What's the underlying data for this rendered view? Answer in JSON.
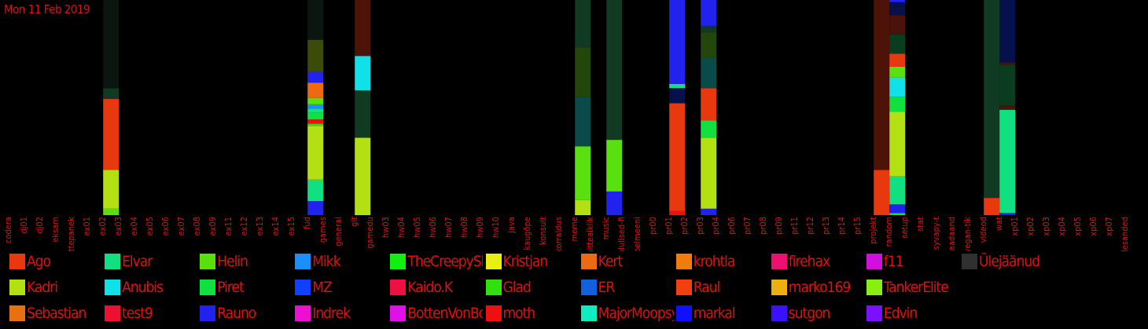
{
  "chart_data": {
    "type": "bar",
    "stacked": true,
    "title": "Mon 11 Feb 2019",
    "categories": [
      "codera",
      "dj01",
      "dj02",
      "eksam",
      "ettepanek",
      "ex01",
      "ex02",
      "ex03",
      "ex04",
      "ex05",
      "ex06",
      "ex07",
      "ex08",
      "ex09",
      "ex11",
      "ex12",
      "ex13",
      "ex14",
      "ex15",
      "fud",
      "games",
      "general",
      "git",
      "gamedu",
      "hw03",
      "hw04",
      "hw05",
      "hw06",
      "hw07",
      "hw08",
      "hw09",
      "hw10",
      "java",
      "kaugõpe",
      "konsult",
      "korraldus",
      "meme",
      "mitteaiklik",
      "music",
      "olulised-fi",
      "pelmeeni",
      "pr00",
      "pr01",
      "pr02",
      "pr03",
      "pr04",
      "pr06",
      "pr07",
      "pr08",
      "pr09",
      "pr11",
      "pr12",
      "pr13",
      "pr14",
      "pr15",
      "projekt",
      "random",
      "setup",
      "stat",
      "syvapy-t",
      "teadaand",
      "vegan-tik",
      "videod",
      "wat",
      "xp01",
      "xp02",
      "xp03",
      "xp04",
      "xp05",
      "xp06",
      "xp07",
      "ülesanded"
    ],
    "ylim": [
      0,
      1
    ],
    "grid": false,
    "legend_position": "bottom",
    "segments": {
      "ex02": [
        [
          "Helin",
          0.03
        ],
        [
          "Kadri",
          0.18
        ],
        [
          "Ago",
          0.33
        ],
        [
          "Ülejäänud",
          0.05
        ],
        [
          "other-dark",
          0.41
        ]
      ],
      "fud": [
        [
          "Rauno",
          0.065
        ],
        [
          "Elvar",
          0.1
        ],
        [
          "Kadri",
          0.25
        ],
        [
          "Glad",
          0.01
        ],
        [
          "moth",
          0.02
        ],
        [
          "Piret",
          0.03
        ],
        [
          "Elvar",
          0.02
        ],
        [
          "Mikk",
          0.02
        ],
        [
          "Helin",
          0.03
        ],
        [
          "Kert",
          0.07
        ],
        [
          "Rauno",
          0.05
        ],
        [
          "Ülejäänud",
          0.15
        ],
        [
          "other-dark",
          0.185
        ]
      ],
      "git": [
        [
          "Kadri",
          0.36
        ],
        [
          "Ülejäänud",
          0.22
        ],
        [
          "Anubis",
          0.16
        ],
        [
          "Ülejäänud",
          0.26
        ]
      ],
      "meme": [
        [
          "Kadri",
          0.07
        ],
        [
          "Helin",
          0.25
        ],
        [
          "Ülejäänud",
          0.23
        ],
        [
          "Ülejäänud",
          0.23
        ],
        [
          "Ülejäänud",
          0.22
        ]
      ],
      "music": [
        [
          "Rauno",
          0.11
        ],
        [
          "Helin",
          0.24
        ],
        [
          "Ülejäänud",
          0.65
        ]
      ],
      "pr01": [
        [
          "moth",
          0.02
        ],
        [
          "Ago",
          0.5
        ],
        [
          "Ülejäänud",
          0.07
        ],
        [
          "Elvar",
          0.02
        ],
        [
          "Rauno",
          0.39
        ]
      ],
      "pr03": [
        [
          "Rauno",
          0.03
        ],
        [
          "Kadri",
          0.33
        ],
        [
          "Piret",
          0.08
        ],
        [
          "Ago",
          0.15
        ],
        [
          "Ülejäänud",
          0.14
        ],
        [
          "Ülejäänud",
          0.12
        ],
        [
          "Ülejäänud",
          0.03
        ],
        [
          "Rauno",
          0.12
        ]
      ],
      "projekt": [
        [
          "Ago",
          0.21
        ],
        [
          "Ülejäänud",
          0.79
        ]
      ],
      "random": [
        [
          "Piret",
          0.01
        ],
        [
          "Rauno",
          0.04
        ],
        [
          "Elvar",
          0.13
        ],
        [
          "Kadri",
          0.3
        ],
        [
          "Piret",
          0.07
        ],
        [
          "Anubis",
          0.09
        ],
        [
          "Helin",
          0.05
        ],
        [
          "Ago",
          0.06
        ],
        [
          "Ülejäänud",
          0.09
        ],
        [
          "Ülejäänud",
          0.09
        ],
        [
          "Ülejäänud",
          0.06
        ],
        [
          "Rauno",
          0.01
        ]
      ],
      "videod": [
        [
          "Ago",
          0.08
        ],
        [
          "Ülejäänud",
          0.92
        ]
      ],
      "wat": [
        [
          "Rauno",
          0.01
        ],
        [
          "Elvar",
          0.48
        ],
        [
          "Ülejäänud",
          0.02
        ],
        [
          "Ülejäänud",
          0.19
        ],
        [
          "Ülejäänud",
          0.01
        ],
        [
          "Ülejäänud",
          0.29
        ]
      ]
    },
    "palette": {
      "Ago": "#e8380e",
      "Elvar": "#10e080",
      "Helin": "#5ae00e",
      "Mikk": "#1a90ff",
      "TheCreepySh": "#12ee12",
      "Kristjan": "#e8f012",
      "Kert": "#ee6a10",
      "krohtla": "#f07c10",
      "firehax": "#ee1070",
      "f11": "#d010e0",
      "Ülejäänud": "#303030",
      "Kadri": "#b2e012",
      "Anubis": "#10e0e8",
      "Piret": "#10e040",
      "MZ": "#1040ff",
      "Kaido.K": "#ee1040",
      "Glad": "#32e010",
      "ER": "#1060e0",
      "Raul": "#f04010",
      "marko169": "#eeb010",
      "TankerElite": "#8aee12",
      "Sebastian": "#e87010",
      "test9": "#ee1030",
      "Rauno": "#2222ee",
      "Indrek": "#ee10d0",
      "BottenVonBot": "#e010e8",
      "moth": "#ee1010",
      "MajorMoopsy": "#10ecc0",
      "markal": "#1010ff",
      "sutgon": "#3c10ff",
      "Edvin": "#7a10ff",
      "other-dark": "#0b1610"
    }
  },
  "legend": [
    [
      "Ago",
      "Elvar",
      "Helin",
      "Mikk",
      "TheCreepySh",
      "Kristjan",
      "Kert",
      "krohtla",
      "firehax",
      "f11",
      "Ülejäänud"
    ],
    [
      "Kadri",
      "Anubis",
      "Piret",
      "MZ",
      "Kaido.K",
      "Glad",
      "ER",
      "Raul",
      "marko169",
      "TankerElite"
    ],
    [
      "Sebastian",
      "test9",
      "Rauno",
      "Indrek",
      "BottenVonBot",
      "moth",
      "MajorMoopsy",
      "markal",
      "sutgon",
      "Edvin"
    ]
  ]
}
